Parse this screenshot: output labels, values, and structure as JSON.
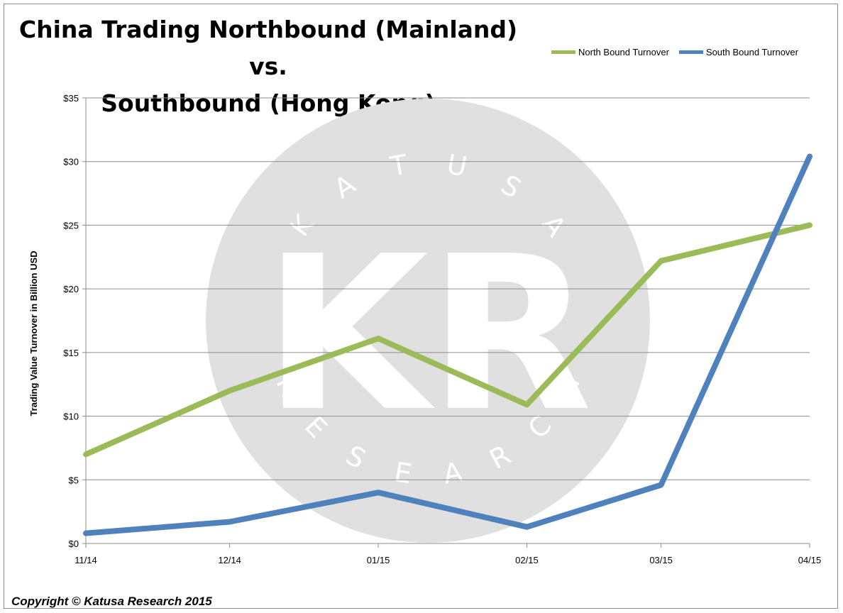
{
  "title_lines": [
    "China Trading Northbound (Mainland) vs.",
    "Southbound (Hong Kong)"
  ],
  "copyright": "Copyright © Katusa Research 2015",
  "watermark": {
    "top_text": "KATUSA",
    "center_text": "KR",
    "bottom_text": "RESEARCH",
    "color": "#e0e0e0"
  },
  "colors": {
    "north": "#9bbb59",
    "south": "#4f81bd",
    "grid": "#8c8c8c"
  },
  "chart_data": {
    "type": "line",
    "title": "China Trading Northbound (Mainland) vs. Southbound (Hong Kong)",
    "xlabel": "",
    "ylabel": "Trading Value Turnover in Billion USD",
    "categories": [
      "11/14",
      "12/14",
      "01/15",
      "02/15",
      "03/15",
      "04/15"
    ],
    "ylim": [
      0,
      35
    ],
    "yticks": [
      0,
      5,
      10,
      15,
      20,
      25,
      30,
      35
    ],
    "ytick_labels": [
      "$0",
      "$5",
      "$10",
      "$15",
      "$20",
      "$25",
      "$30",
      "$35"
    ],
    "grid": true,
    "legend_position": "top-right",
    "series": [
      {
        "name": "North Bound Turnover",
        "color": "#9bbb59",
        "x": [
          "2014-11-01",
          "2014-12-01",
          "2015-01-01",
          "2015-02-01",
          "2015-03-01",
          "2015-04-01"
        ],
        "values": [
          7.0,
          12.0,
          16.1,
          10.9,
          22.2,
          25.0
        ]
      },
      {
        "name": "South Bound Turnover",
        "color": "#4f81bd",
        "x": [
          "2014-11-01",
          "2014-12-01",
          "2015-01-01",
          "2015-02-01",
          "2015-03-01",
          "2015-04-01"
        ],
        "values": [
          0.8,
          1.7,
          4.0,
          1.3,
          4.6,
          30.4
        ]
      }
    ]
  }
}
